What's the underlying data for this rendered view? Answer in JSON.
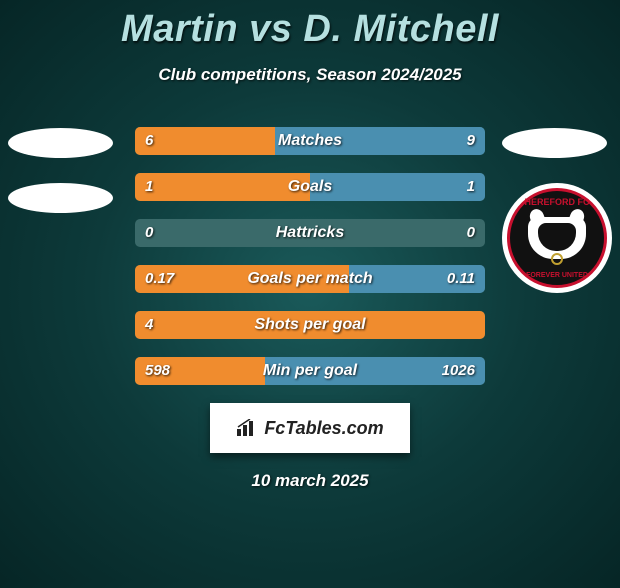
{
  "title": "Martin vs D. Mitchell",
  "subtitle": "Club competitions, Season 2024/2025",
  "date": "10 march 2025",
  "footer_text": "FcTables.com",
  "club_badge": {
    "top_text": "HEREFORD FC",
    "bottom_text": "FOREVER UNITED"
  },
  "colors": {
    "left_fill": "#f08c2e",
    "right_fill": "#4a8fb0",
    "bg_fill": "#3a6a6a",
    "title_color": "#b5e0e0"
  },
  "stats": [
    {
      "label": "Matches",
      "left_value": "6",
      "right_value": "9",
      "left_pct": 40,
      "right_pct": 60,
      "empty_pct": 0
    },
    {
      "label": "Goals",
      "left_value": "1",
      "right_value": "1",
      "left_pct": 50,
      "right_pct": 50,
      "empty_pct": 0
    },
    {
      "label": "Hattricks",
      "left_value": "0",
      "right_value": "0",
      "left_pct": 0,
      "right_pct": 0,
      "empty_pct": 100
    },
    {
      "label": "Goals per match",
      "left_value": "0.17",
      "right_value": "0.11",
      "left_pct": 61,
      "right_pct": 39,
      "empty_pct": 0
    },
    {
      "label": "Shots per goal",
      "left_value": "4",
      "right_value": "",
      "left_pct": 100,
      "right_pct": 0,
      "empty_pct": 0
    },
    {
      "label": "Min per goal",
      "left_value": "598",
      "right_value": "1026",
      "left_pct": 37,
      "right_pct": 63,
      "empty_pct": 0
    }
  ]
}
